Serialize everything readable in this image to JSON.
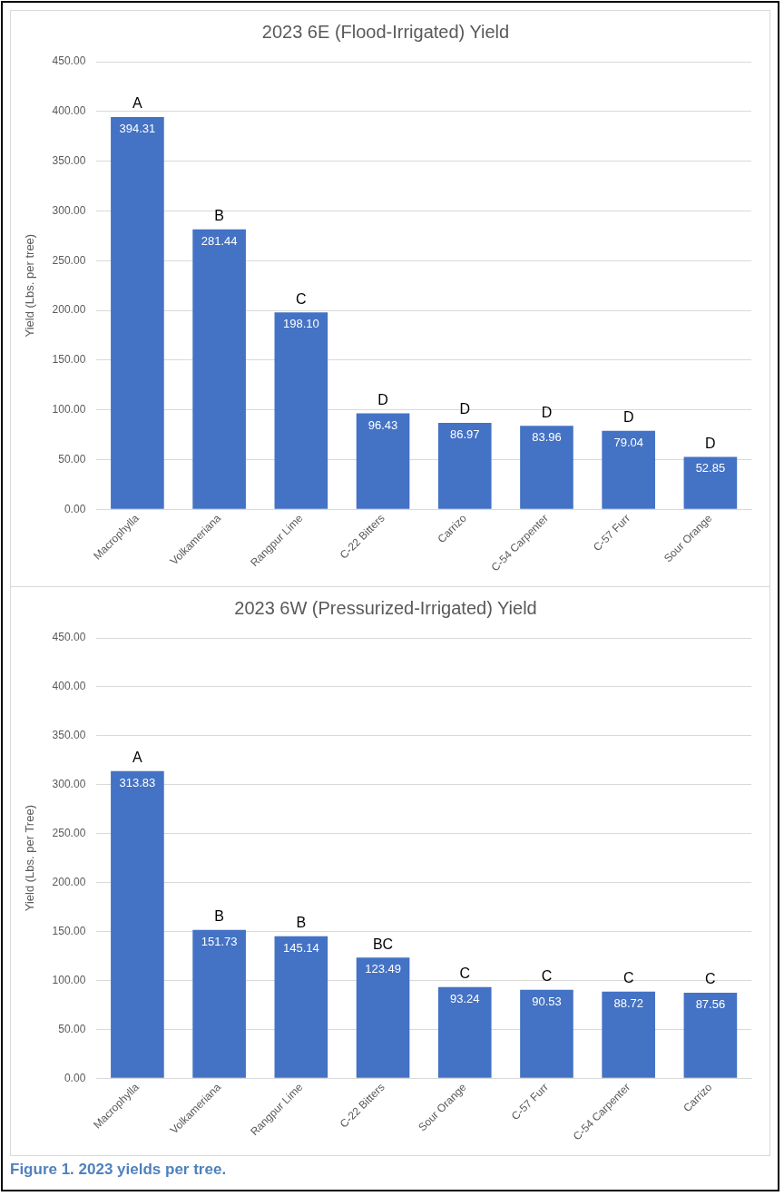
{
  "chart_data": [
    {
      "type": "bar",
      "title": "2023 6E (Flood-Irrigated) Yield",
      "ylabel": "Yield (Lbs. per tree)",
      "categories": [
        "Macrophylla",
        "Volkameriana",
        "Rangpur Lime",
        "C-22 Bitters",
        "Carrizo",
        "C-54 Carpenter",
        "C-57 Furr",
        "Sour Orange"
      ],
      "values": [
        394.31,
        281.44,
        198.1,
        96.43,
        86.97,
        83.96,
        79.04,
        52.85
      ],
      "value_labels": [
        "394.31",
        "281.44",
        "198.10",
        "96.43",
        "86.97",
        "83.96",
        "79.04",
        "52.85"
      ],
      "color": "#4472c4",
      "ylim": [
        0,
        450
      ],
      "yticks": [
        {
          "value": 0,
          "label": "0.00"
        },
        {
          "value": 50,
          "label": "50.00"
        },
        {
          "value": 100,
          "label": "100.00"
        },
        {
          "value": 150,
          "label": "150.00"
        },
        {
          "value": 200,
          "label": "200.00"
        },
        {
          "value": 250,
          "label": "250.00"
        },
        {
          "value": 300,
          "label": "300.00"
        },
        {
          "value": 350,
          "label": "350.00"
        },
        {
          "value": 400,
          "label": "400.00"
        },
        {
          "value": 450,
          "label": "450.00"
        }
      ],
      "grid": "y",
      "annotations": [
        {
          "text": "A",
          "x": "Macrophylla",
          "y": 394.31
        },
        {
          "text": "B",
          "x": "Volkameriana",
          "y": 281.44
        },
        {
          "text": "C",
          "x": "Rangpur Lime",
          "y": 198.1
        },
        {
          "text": "D",
          "x": "C-22 Bitters",
          "y": 96.43
        },
        {
          "text": "D",
          "x": "Carrizo",
          "y": 86.97
        },
        {
          "text": "D",
          "x": "C-54 Carpenter",
          "y": 83.96
        },
        {
          "text": "D",
          "x": "C-57 Furr",
          "y": 79.04
        },
        {
          "text": "D",
          "x": "Sour Orange",
          "y": 52.85
        }
      ]
    },
    {
      "type": "bar",
      "title": "2023 6W (Pressurized-Irrigated) Yield",
      "ylabel": "Yield (Lbs. per Tree)",
      "categories": [
        "Macrophylla",
        "Volkameriana",
        "Rangpur Lime",
        "C-22 Bitters",
        "Sour Orange",
        "C-57 Furr",
        "C-54 Carpenter",
        "Carrizo"
      ],
      "values": [
        313.83,
        151.73,
        145.14,
        123.49,
        93.24,
        90.53,
        88.72,
        87.56
      ],
      "value_labels": [
        "313.83",
        "151.73",
        "145.14",
        "123.49",
        "93.24",
        "90.53",
        "88.72",
        "87.56"
      ],
      "color": "#4472c4",
      "ylim": [
        0,
        450
      ],
      "yticks": [
        {
          "value": 0,
          "label": "0.00"
        },
        {
          "value": 50,
          "label": "50.00"
        },
        {
          "value": 100,
          "label": "100.00"
        },
        {
          "value": 150,
          "label": "150.00"
        },
        {
          "value": 200,
          "label": "200.00"
        },
        {
          "value": 250,
          "label": "250.00"
        },
        {
          "value": 300,
          "label": "300.00"
        },
        {
          "value": 350,
          "label": "350.00"
        },
        {
          "value": 400,
          "label": "400.00"
        },
        {
          "value": 450,
          "label": "450.00"
        }
      ],
      "grid": "y",
      "annotations": [
        {
          "text": "A",
          "x": "Macrophylla",
          "y": 313.83
        },
        {
          "text": "B",
          "x": "Volkameriana",
          "y": 151.73
        },
        {
          "text": "B",
          "x": "Rangpur Lime",
          "y": 145.14
        },
        {
          "text": "BC",
          "x": "C-22 Bitters",
          "y": 123.49
        },
        {
          "text": "C",
          "x": "Sour Orange",
          "y": 93.24
        },
        {
          "text": "C",
          "x": "C-57 Furr",
          "y": 90.53
        },
        {
          "text": "C",
          "x": "C-54 Carpenter",
          "y": 88.72
        },
        {
          "text": "C",
          "x": "Carrizo",
          "y": 87.56
        },
        "Figure 1.  2023 yields per tree."
      ]
    }
  ]
}
